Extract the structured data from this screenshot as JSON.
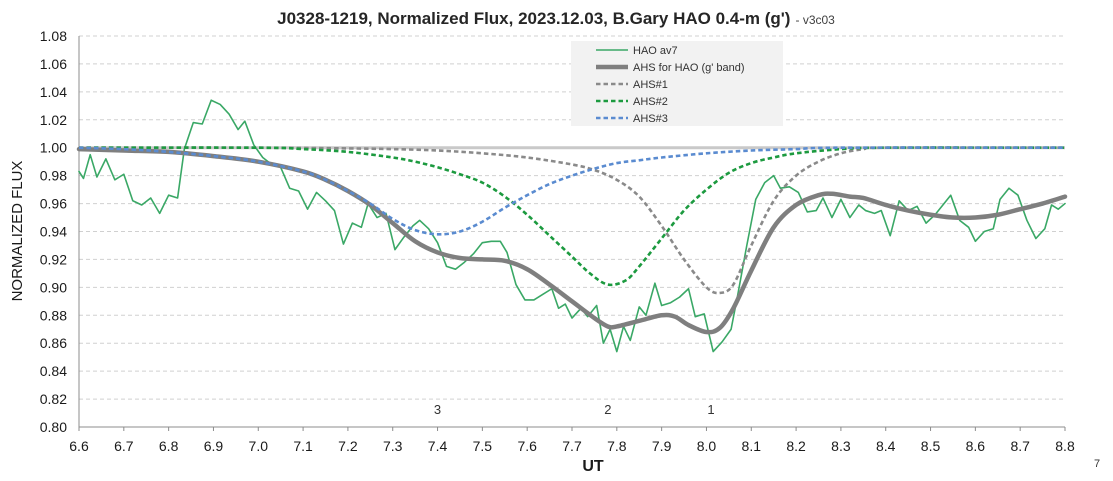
{
  "chart_data": {
    "type": "line",
    "title": "J0328-1219, Normalized Flux, 2023.12.03, B.Gary HAO 0.4-m (g')",
    "subtitle": "- v3c03",
    "xlabel": "UT",
    "ylabel": "NORMALIZED FLUX",
    "xlim": [
      6.6,
      8.8
    ],
    "ylim": [
      0.8,
      1.08
    ],
    "x_ticks": [
      "6.6",
      "6.7",
      "6.8",
      "6.9",
      "7.0",
      "7.1",
      "7.2",
      "7.3",
      "7.4",
      "7.5",
      "7.6",
      "7.7",
      "7.8",
      "7.9",
      "8.0",
      "8.1",
      "8.2",
      "8.3",
      "8.4",
      "8.5",
      "8.6",
      "8.7",
      "8.8"
    ],
    "y_ticks": [
      "0.80",
      "0.82",
      "0.84",
      "0.86",
      "0.88",
      "0.90",
      "0.92",
      "0.94",
      "0.96",
      "0.98",
      "1.00",
      "1.02",
      "1.04",
      "1.06",
      "1.08"
    ],
    "grid": true,
    "legend": "top-center",
    "reference_line": {
      "y": 1.0,
      "color": "#c9c9c9"
    },
    "series": [
      {
        "name": "HAO av7",
        "color": "#3aa866",
        "style": "solid",
        "x": [
          6.6,
          6.61,
          6.625,
          6.64,
          6.66,
          6.68,
          6.7,
          6.72,
          6.74,
          6.76,
          6.78,
          6.8,
          6.82,
          6.835,
          6.855,
          6.875,
          6.895,
          6.915,
          6.935,
          6.955,
          6.97,
          6.99,
          7.01,
          7.03,
          7.05,
          7.07,
          7.09,
          7.11,
          7.13,
          7.15,
          7.17,
          7.19,
          7.21,
          7.23,
          7.245,
          7.265,
          7.285,
          7.305,
          7.325,
          7.345,
          7.36,
          7.38,
          7.4,
          7.42,
          7.44,
          7.46,
          7.48,
          7.5,
          7.52,
          7.54,
          7.555,
          7.575,
          7.595,
          7.615,
          7.635,
          7.655,
          7.67,
          7.685,
          7.7,
          7.72,
          7.735,
          7.755,
          7.77,
          7.785,
          7.8,
          7.815,
          7.83,
          7.85,
          7.865,
          7.885,
          7.9,
          7.92,
          7.94,
          7.96,
          7.975,
          7.995,
          8.015,
          8.035,
          8.055,
          8.07,
          8.09,
          8.11,
          8.13,
          8.15,
          8.165,
          8.185,
          8.205,
          8.225,
          8.245,
          8.26,
          8.28,
          8.3,
          8.32,
          8.34,
          8.355,
          8.375,
          8.39,
          8.41,
          8.43,
          8.45,
          8.47,
          8.49,
          8.51,
          8.53,
          8.545,
          8.565,
          8.585,
          8.6,
          8.62,
          8.64,
          8.655,
          8.675,
          8.695,
          8.715,
          8.735,
          8.755,
          8.77,
          8.785,
          8.8
        ],
        "y": [
          0.983,
          0.978,
          0.995,
          0.979,
          0.992,
          0.977,
          0.981,
          0.962,
          0.959,
          0.964,
          0.953,
          0.966,
          0.964,
          0.999,
          1.018,
          1.017,
          1.034,
          1.031,
          1.024,
          1.013,
          1.019,
          1.002,
          0.993,
          0.988,
          0.986,
          0.971,
          0.969,
          0.956,
          0.968,
          0.962,
          0.955,
          0.931,
          0.946,
          0.943,
          0.96,
          0.95,
          0.953,
          0.927,
          0.936,
          0.944,
          0.948,
          0.942,
          0.932,
          0.915,
          0.913,
          0.918,
          0.924,
          0.932,
          0.933,
          0.933,
          0.925,
          0.902,
          0.891,
          0.891,
          0.895,
          0.899,
          0.885,
          0.888,
          0.878,
          0.885,
          0.879,
          0.887,
          0.86,
          0.87,
          0.854,
          0.872,
          0.862,
          0.886,
          0.88,
          0.903,
          0.887,
          0.889,
          0.893,
          0.899,
          0.879,
          0.881,
          0.854,
          0.861,
          0.87,
          0.895,
          0.93,
          0.963,
          0.975,
          0.98,
          0.971,
          0.972,
          0.968,
          0.954,
          0.955,
          0.964,
          0.95,
          0.963,
          0.95,
          0.959,
          0.955,
          0.953,
          0.955,
          0.937,
          0.962,
          0.955,
          0.958,
          0.946,
          0.952,
          0.96,
          0.966,
          0.948,
          0.943,
          0.933,
          0.94,
          0.942,
          0.963,
          0.971,
          0.966,
          0.948,
          0.935,
          0.942,
          0.959,
          0.956,
          0.96
        ]
      },
      {
        "name": "AHS for HAO (g' band)",
        "color": "#7f7f7f",
        "style": "thick",
        "x": [
          6.6,
          6.7,
          6.8,
          6.9,
          7.0,
          7.1,
          7.15,
          7.2,
          7.25,
          7.3,
          7.35,
          7.4,
          7.45,
          7.5,
          7.55,
          7.6,
          7.65,
          7.7,
          7.75,
          7.78,
          7.8,
          7.85,
          7.9,
          7.93,
          7.96,
          8.0,
          8.03,
          8.06,
          8.1,
          8.15,
          8.2,
          8.25,
          8.28,
          8.32,
          8.35,
          8.4,
          8.45,
          8.5,
          8.55,
          8.6,
          8.65,
          8.7,
          8.75,
          8.8
        ],
        "y": [
          0.999,
          0.998,
          0.997,
          0.994,
          0.99,
          0.983,
          0.977,
          0.969,
          0.959,
          0.946,
          0.933,
          0.925,
          0.921,
          0.92,
          0.919,
          0.913,
          0.902,
          0.89,
          0.878,
          0.872,
          0.872,
          0.876,
          0.88,
          0.879,
          0.873,
          0.868,
          0.871,
          0.885,
          0.912,
          0.943,
          0.959,
          0.966,
          0.967,
          0.965,
          0.964,
          0.959,
          0.955,
          0.952,
          0.95,
          0.95,
          0.952,
          0.956,
          0.96,
          0.965
        ]
      },
      {
        "name": "AHS#1",
        "color": "#8a8a8a",
        "style": "dashed",
        "x": [
          6.6,
          7.0,
          7.2,
          7.3,
          7.4,
          7.5,
          7.6,
          7.7,
          7.75,
          7.8,
          7.85,
          7.9,
          7.95,
          8.0,
          8.03,
          8.06,
          8.1,
          8.15,
          8.2,
          8.25,
          8.3,
          8.35,
          8.4,
          8.8
        ],
        "y": [
          1.0,
          1.0,
          0.9995,
          0.999,
          0.998,
          0.996,
          0.993,
          0.988,
          0.984,
          0.977,
          0.965,
          0.944,
          0.92,
          0.9,
          0.896,
          0.902,
          0.93,
          0.962,
          0.98,
          0.99,
          0.996,
          0.999,
          1.0,
          1.0
        ]
      },
      {
        "name": "AHS#2",
        "color": "#1c9a3f",
        "style": "dashed",
        "x": [
          6.6,
          7.0,
          7.1,
          7.2,
          7.3,
          7.35,
          7.4,
          7.45,
          7.5,
          7.55,
          7.6,
          7.65,
          7.7,
          7.74,
          7.78,
          7.82,
          7.85,
          7.9,
          7.95,
          8.0,
          8.05,
          8.1,
          8.15,
          8.2,
          8.3,
          8.4,
          8.8
        ],
        "y": [
          1.0,
          1.0,
          0.999,
          0.997,
          0.993,
          0.99,
          0.986,
          0.981,
          0.975,
          0.965,
          0.952,
          0.937,
          0.922,
          0.91,
          0.902,
          0.905,
          0.915,
          0.935,
          0.955,
          0.97,
          0.982,
          0.989,
          0.993,
          0.996,
          0.999,
          1.0,
          1.0
        ]
      },
      {
        "name": "AHS#3",
        "color": "#5a8bd0",
        "style": "dashed",
        "x": [
          6.6,
          6.7,
          6.8,
          6.9,
          7.0,
          7.1,
          7.15,
          7.2,
          7.25,
          7.3,
          7.35,
          7.4,
          7.45,
          7.5,
          7.55,
          7.6,
          7.65,
          7.7,
          7.75,
          7.8,
          7.85,
          7.9,
          8.0,
          8.1,
          8.2,
          8.3,
          8.8
        ],
        "y": [
          1.0,
          0.999,
          0.997,
          0.994,
          0.99,
          0.983,
          0.977,
          0.969,
          0.96,
          0.949,
          0.941,
          0.938,
          0.94,
          0.947,
          0.957,
          0.966,
          0.974,
          0.98,
          0.985,
          0.989,
          0.991,
          0.993,
          0.996,
          0.998,
          0.999,
          1.0,
          1.0
        ]
      }
    ],
    "annotations": [
      {
        "text": "3",
        "x": 7.4,
        "y": 0.813
      },
      {
        "text": "2",
        "x": 7.78,
        "y": 0.813
      },
      {
        "text": "1",
        "x": 8.01,
        "y": 0.813
      }
    ]
  },
  "corner_label": "7"
}
